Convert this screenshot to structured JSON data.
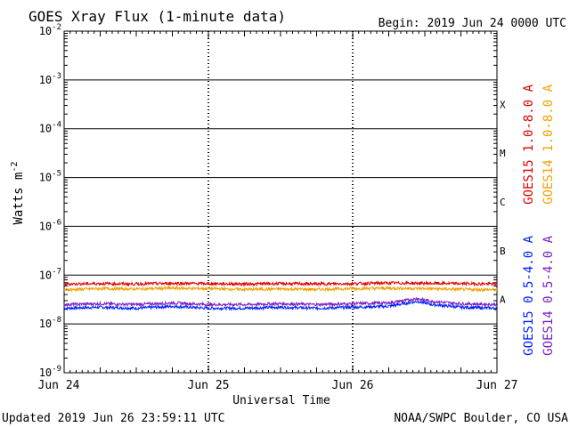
{
  "chart_data": {
    "type": "line",
    "title": "GOES Xray Flux (1-minute data)",
    "begin_label": "Begin:  2019 Jun 24 0000 UTC",
    "xlabel": "Universal Time",
    "ylabel_main": "Watts m",
    "ylabel_exp": "-2",
    "x_categories": [
      "Jun 24",
      "Jun 25",
      "Jun 26",
      "Jun 27"
    ],
    "y_scale": "log",
    "ylim": [
      1e-09,
      0.01
    ],
    "y_tick_labels": [
      {
        "base": "10",
        "exp": "-2",
        "value": 0.01
      },
      {
        "base": "10",
        "exp": "-3",
        "value": 0.001
      },
      {
        "base": "10",
        "exp": "-4",
        "value": 0.0001
      },
      {
        "base": "10",
        "exp": "-5",
        "value": 1e-05
      },
      {
        "base": "10",
        "exp": "-6",
        "value": 1e-06
      },
      {
        "base": "10",
        "exp": "-7",
        "value": 1e-07
      },
      {
        "base": "10",
        "exp": "-8",
        "value": 1e-08
      },
      {
        "base": "10",
        "exp": "-9",
        "value": 1e-09
      }
    ],
    "flare_classes": [
      {
        "label": "X",
        "value": 0.000316
      },
      {
        "label": "M",
        "value": 3.16e-05
      },
      {
        "label": "C",
        "value": 3.16e-06
      },
      {
        "label": "B",
        "value": 3.16e-07
      },
      {
        "label": "A",
        "value": 3.16e-08
      }
    ],
    "grid": true,
    "series": [
      {
        "name": "GOES15 1.0-8.0 A",
        "color": "#e00000",
        "x": [
          0,
          0.25,
          0.5,
          0.75,
          1,
          1.25,
          1.5,
          1.75,
          2,
          2.25,
          2.5,
          2.75,
          3
        ],
        "values": [
          6.6e-08,
          6.7e-08,
          6.6e-08,
          6.8e-08,
          6.7e-08,
          6.6e-08,
          6.7e-08,
          6.6e-08,
          6.7e-08,
          6.9e-08,
          6.8e-08,
          6.7e-08,
          6.6e-08
        ]
      },
      {
        "name": "GOES14 1.0-8.0 A",
        "color": "#f0a000",
        "x": [
          0,
          0.25,
          0.5,
          0.75,
          1,
          1.25,
          1.5,
          1.75,
          2,
          2.25,
          2.5,
          2.75,
          3
        ],
        "values": [
          5e-08,
          5.3e-08,
          5.2e-08,
          5.4e-08,
          5.3e-08,
          5.1e-08,
          5.2e-08,
          5.1e-08,
          5.3e-08,
          5.4e-08,
          5.3e-08,
          5.1e-08,
          5e-08
        ]
      },
      {
        "name": "GOES15 0.5-4.0 A",
        "color": "#0020ff",
        "x": [
          0,
          0.25,
          0.5,
          0.75,
          1,
          1.25,
          1.5,
          1.75,
          2,
          2.25,
          2.35,
          2.45,
          2.55,
          2.75,
          3
        ],
        "values": [
          2.1e-08,
          2.2e-08,
          2.1e-08,
          2.3e-08,
          2.1e-08,
          2.1e-08,
          2.2e-08,
          2.1e-08,
          2.2e-08,
          2.3e-08,
          2.6e-08,
          2.9e-08,
          2.5e-08,
          2.2e-08,
          2.1e-08
        ]
      },
      {
        "name": "GOES14 0.5-4.0 A",
        "color": "#7a1fc0",
        "x": [
          0,
          0.25,
          0.5,
          0.75,
          1,
          1.25,
          1.5,
          1.75,
          2,
          2.25,
          2.35,
          2.45,
          2.55,
          2.75,
          3
        ],
        "values": [
          2.5e-08,
          2.6e-08,
          2.5e-08,
          2.7e-08,
          2.5e-08,
          2.5e-08,
          2.6e-08,
          2.5e-08,
          2.6e-08,
          2.7e-08,
          3e-08,
          3.3e-08,
          2.9e-08,
          2.6e-08,
          2.5e-08
        ]
      }
    ],
    "legend_order": [
      {
        "name": "GOES15 1.0-8.0 A",
        "color": "#e00000"
      },
      {
        "name": "GOES14 1.0-8.0 A",
        "color": "#f0a000"
      },
      {
        "name": "GOES15 0.5-4.0 A",
        "color": "#0020ff"
      },
      {
        "name": "GOES14 0.5-4.0 A",
        "color": "#7a1fc0"
      }
    ],
    "legend_placement": "right, vertical"
  },
  "footer": {
    "updated": "Updated 2019 Jun 26 23:59:11 UTC",
    "source": "NOAA/SWPC Boulder, CO USA"
  }
}
